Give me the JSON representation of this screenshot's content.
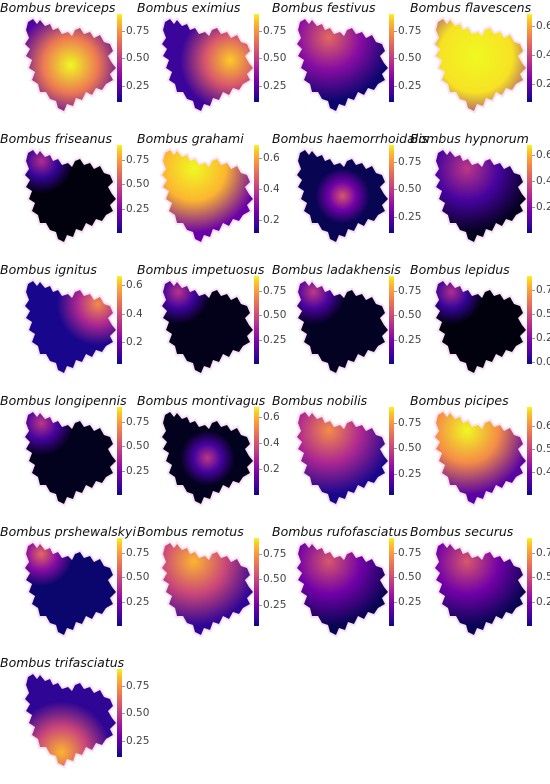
{
  "panels": [
    {
      "title": "Bombus breviceps",
      "ticks": [
        "0.75",
        "0.50",
        "0.25"
      ],
      "tickvals": [
        0.75,
        0.5,
        0.25
      ],
      "range": [
        0.1,
        0.9
      ],
      "level": 0.55,
      "hot": "center"
    },
    {
      "title": "Bombus eximius",
      "ticks": [
        "0.75",
        "0.50",
        "0.25"
      ],
      "tickvals": [
        0.75,
        0.5,
        0.25
      ],
      "range": [
        0.1,
        0.9
      ],
      "level": 0.45,
      "hot": "east"
    },
    {
      "title": "Bombus festivus",
      "ticks": [
        "0.75",
        "0.50",
        "0.25"
      ],
      "tickvals": [
        0.75,
        0.5,
        0.25
      ],
      "range": [
        0.1,
        0.9
      ],
      "level": 0.2,
      "hot": "north"
    },
    {
      "title": "Bombus flavescens",
      "ticks": [
        "0.6",
        "0.4",
        "0.2"
      ],
      "tickvals": [
        0.6,
        0.4,
        0.2
      ],
      "range": [
        0.08,
        0.68
      ],
      "level": 0.8,
      "hot": "all"
    },
    {
      "title": "Bombus friseanus",
      "ticks": [
        "0.75",
        "0.50",
        "0.25"
      ],
      "tickvals": [
        0.75,
        0.5,
        0.25
      ],
      "range": [
        0.0,
        0.9
      ],
      "level": 0.02,
      "hot": "northwest"
    },
    {
      "title": "Bombus grahami",
      "ticks": [
        "0.6",
        "0.4",
        "0.2"
      ],
      "tickvals": [
        0.6,
        0.4,
        0.2
      ],
      "range": [
        0.12,
        0.68
      ],
      "level": 0.7,
      "hot": "north"
    },
    {
      "title": "Bombus haemorrhoidalis",
      "ticks": [
        "0.75",
        "0.50",
        "0.25"
      ],
      "tickvals": [
        0.75,
        0.5,
        0.25
      ],
      "range": [
        0.1,
        0.9
      ],
      "level": 0.15,
      "hot": "none"
    },
    {
      "title": "Bombus hypnorum",
      "ticks": [
        "0.6",
        "0.4",
        "0.2"
      ],
      "tickvals": [
        0.6,
        0.4,
        0.2
      ],
      "range": [
        0.0,
        0.68
      ],
      "level": 0.05,
      "hot": "north"
    },
    {
      "title": "Bombus ignitus",
      "ticks": [
        "0.6",
        "0.4",
        "0.2"
      ],
      "tickvals": [
        0.6,
        0.4,
        0.2
      ],
      "range": [
        0.05,
        0.66
      ],
      "level": 0.3,
      "hot": "northeast"
    },
    {
      "title": "Bombus impetuosus",
      "ticks": [
        "0.75",
        "0.50",
        "0.25"
      ],
      "tickvals": [
        0.75,
        0.5,
        0.25
      ],
      "range": [
        0.0,
        0.9
      ],
      "level": 0.04,
      "hot": "northwest"
    },
    {
      "title": "Bombus ladakhensis",
      "ticks": [
        "0.75",
        "0.50",
        "0.25"
      ],
      "tickvals": [
        0.75,
        0.5,
        0.25
      ],
      "range": [
        0.0,
        0.9
      ],
      "level": 0.06,
      "hot": "northwest"
    },
    {
      "title": "Bombus lepidus",
      "ticks": [
        "0.75",
        "0.50",
        "0.25",
        "0.00"
      ],
      "tickvals": [
        0.75,
        0.5,
        0.25,
        0.0
      ],
      "range": [
        -0.02,
        0.9
      ],
      "level": 0.02,
      "hot": "northwest"
    },
    {
      "title": "Bombus longipennis",
      "ticks": [
        "0.75",
        "0.50",
        "0.25"
      ],
      "tickvals": [
        0.75,
        0.5,
        0.25
      ],
      "range": [
        0.0,
        0.9
      ],
      "level": 0.05,
      "hot": "northwest"
    },
    {
      "title": "Bombus montivagus",
      "ticks": [
        "0.6",
        "0.4",
        "0.2"
      ],
      "tickvals": [
        0.6,
        0.4,
        0.2
      ],
      "range": [
        0.0,
        0.68
      ],
      "level": 0.05,
      "hot": "none"
    },
    {
      "title": "Bombus nobilis",
      "ticks": [
        "0.75",
        "0.50",
        "0.25"
      ],
      "tickvals": [
        0.75,
        0.5,
        0.25
      ],
      "range": [
        0.05,
        0.9
      ],
      "level": 0.3,
      "hot": "north"
    },
    {
      "title": "Bombus picipes",
      "ticks": [
        "0.6",
        "0.5",
        "0.4"
      ],
      "tickvals": [
        0.6,
        0.5,
        0.4
      ],
      "range": [
        0.3,
        0.68
      ],
      "level": 0.6,
      "hot": "north"
    },
    {
      "title": "Bombus prshewalskyi",
      "ticks": [
        "0.75",
        "0.50",
        "0.25"
      ],
      "tickvals": [
        0.75,
        0.5,
        0.25
      ],
      "range": [
        0.0,
        0.9
      ],
      "level": 0.2,
      "hot": "northwest"
    },
    {
      "title": "Bombus remotus",
      "ticks": [
        "0.75",
        "0.50",
        "0.25"
      ],
      "tickvals": [
        0.75,
        0.5,
        0.25
      ],
      "range": [
        0.05,
        0.9
      ],
      "level": 0.4,
      "hot": "north"
    },
    {
      "title": "Bombus rufofasciatus",
      "ticks": [
        "0.75",
        "0.50",
        "0.25"
      ],
      "tickvals": [
        0.75,
        0.5,
        0.25
      ],
      "range": [
        0.0,
        0.9
      ],
      "level": 0.15,
      "hot": "north"
    },
    {
      "title": "Bombus securus",
      "ticks": [
        "0.75",
        "0.50",
        "0.25"
      ],
      "tickvals": [
        0.75,
        0.5,
        0.25
      ],
      "range": [
        0.0,
        0.9
      ],
      "level": 0.15,
      "hot": "north"
    },
    {
      "title": "Bombus trifasciatus",
      "ticks": [
        "0.75",
        "0.50",
        "0.25"
      ],
      "tickvals": [
        0.75,
        0.5,
        0.25
      ],
      "range": [
        0.1,
        0.9
      ],
      "level": 0.4,
      "hot": "south"
    }
  ],
  "colormap": [
    "#000004",
    "#0d0887",
    "#46039f",
    "#7201a8",
    "#9c179e",
    "#bd3786",
    "#d8576b",
    "#ed7953",
    "#fb9f3a",
    "#fdca26",
    "#f0f921"
  ]
}
